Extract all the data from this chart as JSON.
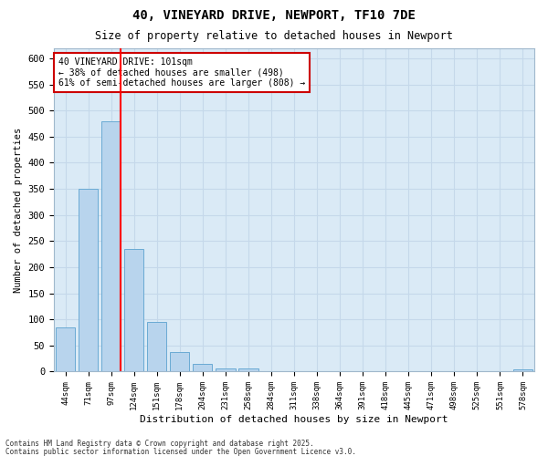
{
  "title": "40, VINEYARD DRIVE, NEWPORT, TF10 7DE",
  "subtitle": "Size of property relative to detached houses in Newport",
  "xlabel": "Distribution of detached houses by size in Newport",
  "ylabel": "Number of detached properties",
  "categories": [
    "44sqm",
    "71sqm",
    "97sqm",
    "124sqm",
    "151sqm",
    "178sqm",
    "204sqm",
    "231sqm",
    "258sqm",
    "284sqm",
    "311sqm",
    "338sqm",
    "364sqm",
    "391sqm",
    "418sqm",
    "445sqm",
    "471sqm",
    "498sqm",
    "525sqm",
    "551sqm",
    "578sqm"
  ],
  "values": [
    85,
    350,
    480,
    235,
    95,
    37,
    15,
    6,
    6,
    0,
    0,
    0,
    0,
    0,
    0,
    0,
    0,
    0,
    0,
    0,
    5
  ],
  "bar_color": "#b8d4ed",
  "bar_edge_color": "#6aaad4",
  "grid_color": "#c5d8ea",
  "background_color": "#daeaf6",
  "fig_background": "#ffffff",
  "red_line_index": 2,
  "annotation_line1": "40 VINEYARD DRIVE: 101sqm",
  "annotation_line2": "← 38% of detached houses are smaller (498)",
  "annotation_line3": "61% of semi-detached houses are larger (808) →",
  "annotation_box_color": "#ffffff",
  "annotation_box_edge": "#cc0000",
  "footer1": "Contains HM Land Registry data © Crown copyright and database right 2025.",
  "footer2": "Contains public sector information licensed under the Open Government Licence v3.0.",
  "ylim": [
    0,
    620
  ],
  "yticks": [
    0,
    50,
    100,
    150,
    200,
    250,
    300,
    350,
    400,
    450,
    500,
    550,
    600
  ]
}
